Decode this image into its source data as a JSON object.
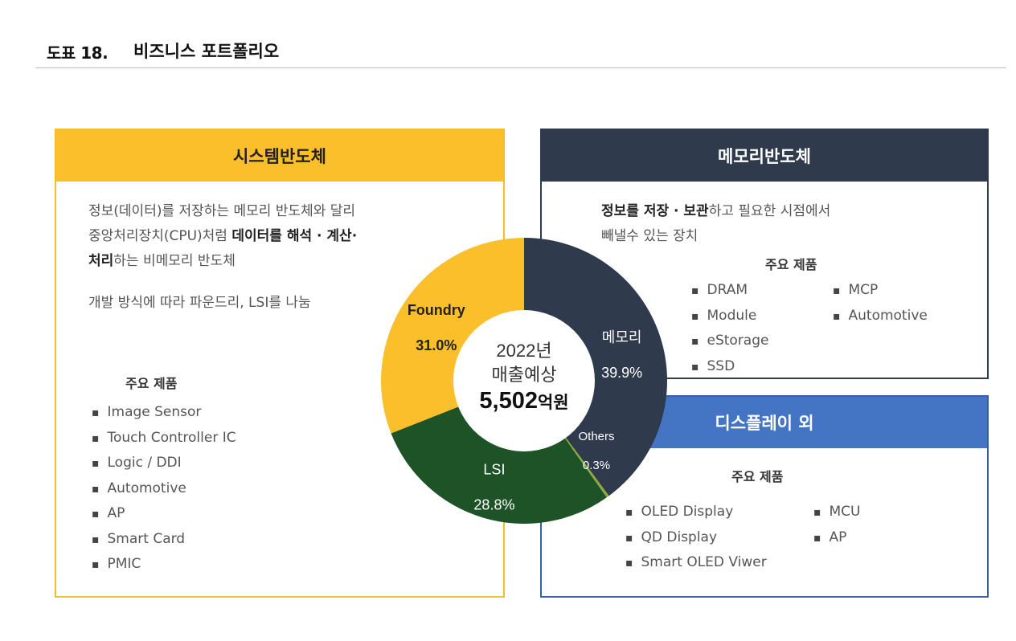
{
  "header": {
    "number": "도표 18.",
    "title": "비즈니스 포트폴리오"
  },
  "system": {
    "title": "시스템반도체",
    "desc1": {
      "l1": "정보(데이터)를 저장하는 메모리 반도체와 달리",
      "l2a": "중앙처리장치(CPU)처럼 ",
      "l2b": "데이터를 해석 · 계산·",
      "l3a": "처리",
      "l3b": "하는 비메모리 반도체"
    },
    "desc2": "개발 방식에 따라 파운드리, LSI를 나눔",
    "products_title": "주요 제품",
    "products": [
      "Image Sensor",
      "Touch Controller IC",
      "Logic / DDI",
      "Automotive",
      "AP",
      "Smart Card",
      "PMIC"
    ]
  },
  "memory": {
    "title": "메모리반도체",
    "desc": {
      "l1a": "정보를 저장 · 보관",
      "l1b": "하고 필요한 시점에서",
      "l2": "빼낼수 있는 장치"
    },
    "products_title": "주요 제품",
    "products_left": [
      "DRAM",
      "Module",
      "eStorage",
      "SSD"
    ],
    "products_right": [
      "MCP",
      "Automotive"
    ]
  },
  "display": {
    "title": "디스플레이 외",
    "products_title": "주요 제품",
    "products_left": [
      "OLED Display",
      "QD Display",
      "Smart OLED Viwer"
    ],
    "products_right": [
      "MCU",
      "AP"
    ]
  },
  "center": {
    "year": "2022년",
    "label": "매출예상",
    "amount": "5,502",
    "unit": "억원"
  },
  "chart_data": {
    "type": "pie",
    "categories": [
      "메모리",
      "Others",
      "LSI",
      "Foundry"
    ],
    "values": [
      39.9,
      0.3,
      28.8,
      31.0
    ],
    "labels": [
      "39.9%",
      "0.3%",
      "28.8%",
      "31.0%"
    ],
    "colors": [
      "#2f3a4d",
      "#8fa83a",
      "#1d5326",
      "#fbbf2b"
    ],
    "label_colors": [
      "#ffffff",
      "#ffffff",
      "#ffffff",
      "#222222"
    ]
  }
}
